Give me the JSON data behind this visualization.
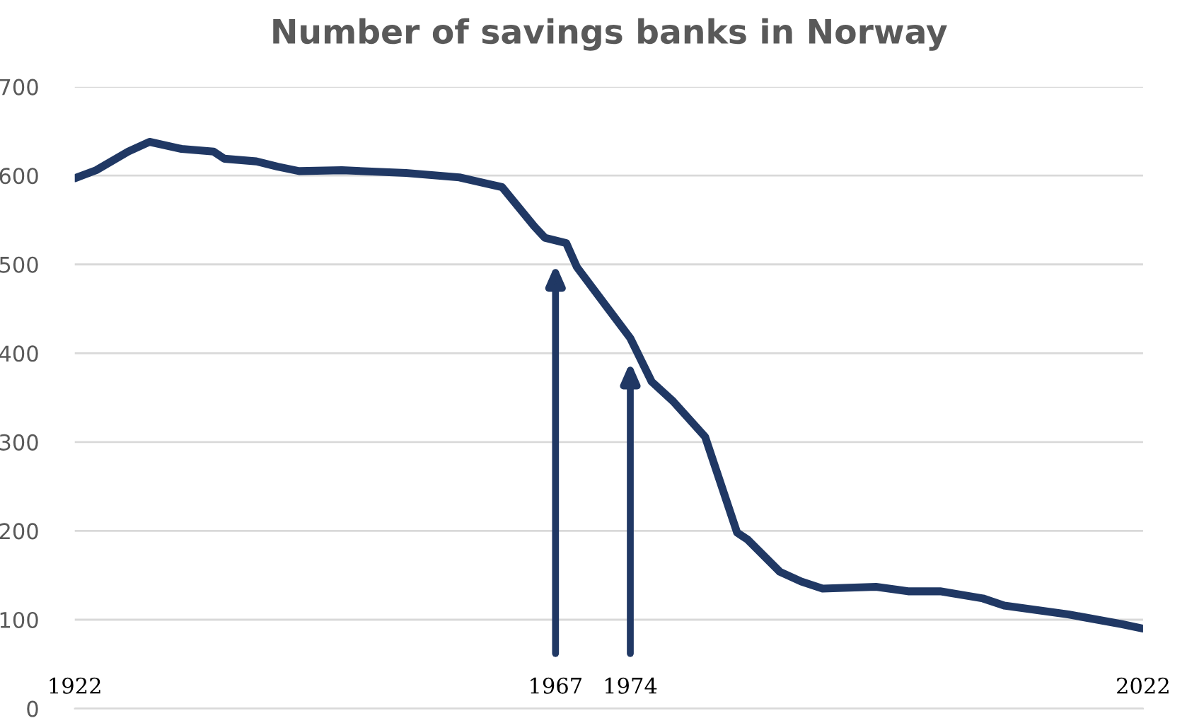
{
  "chart_data": {
    "type": "line",
    "title": "Number of savings banks in Norway",
    "x": [
      1922,
      1924,
      1927,
      1929,
      1932,
      1935,
      1936,
      1939,
      1941,
      1943,
      1947,
      1953,
      1958,
      1962,
      1965,
      1966,
      1968,
      1969,
      1972,
      1974,
      1976,
      1978,
      1981,
      1982,
      1984,
      1985,
      1988,
      1990,
      1992,
      1997,
      2000,
      2003,
      2007,
      2009,
      2015,
      2020,
      2022
    ],
    "series": [
      {
        "color": "#203864",
        "values": [
          597,
          606,
          627,
          638,
          630,
          627,
          619,
          616,
          610,
          605,
          606,
          603,
          598,
          587,
          543,
          530,
          524,
          497,
          449,
          417,
          368,
          346,
          306,
          270,
          198,
          190,
          154,
          143,
          135,
          137,
          132,
          132,
          124,
          116,
          106,
          95,
          90
        ]
      }
    ],
    "xlim": [
      1922,
      2022
    ],
    "xticks": [
      1922,
      1967,
      1974,
      2022
    ],
    "ylim": [
      0,
      700
    ],
    "yticks": [
      0,
      100,
      200,
      300,
      400,
      500,
      600,
      700
    ],
    "grid": "y",
    "legend": false,
    "marker": "none",
    "line_style": "solid"
  }
}
